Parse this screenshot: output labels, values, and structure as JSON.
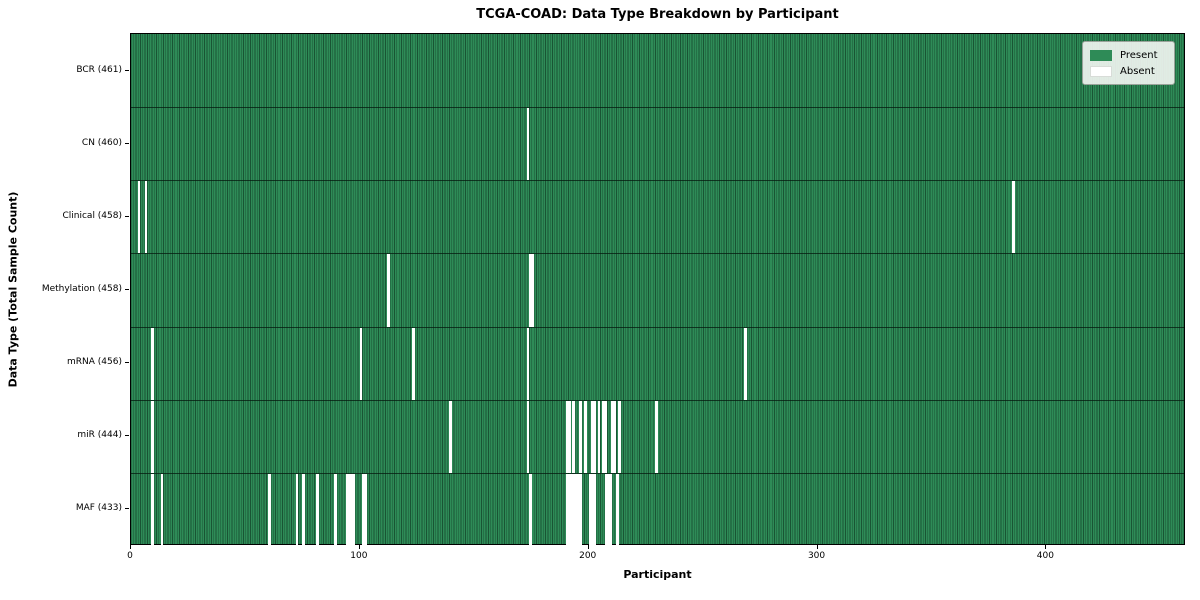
{
  "chart_data": {
    "type": "heatmap",
    "title": "TCGA-COAD: Data Type Breakdown by Participant",
    "xlabel": "Participant",
    "ylabel": "Data Type (Total Sample Count)",
    "x_ticks": [
      0,
      100,
      200,
      300,
      400
    ],
    "xlim": [
      0,
      461
    ],
    "n_participants": 461,
    "grid": "per-cell vertical edges, dark row separators",
    "legend_position": "upper right",
    "legend": [
      {
        "label": "Present",
        "color": "#2e8b57"
      },
      {
        "label": "Absent",
        "color": "#ffffff"
      }
    ],
    "colors": {
      "present": "#2e8b57",
      "absent": "#ffffff",
      "cell_edge": "#0a2818",
      "plot_border": "#000000"
    },
    "rows": [
      {
        "data_type": "BCR",
        "count": 461,
        "label": "BCR (461)",
        "absent_participants": []
      },
      {
        "data_type": "CN",
        "count": 460,
        "label": "CN (460)",
        "absent_participants": [
          173
        ]
      },
      {
        "data_type": "Clinical",
        "count": 458,
        "label": "Clinical (458)",
        "absent_participants": [
          3,
          6,
          385
        ]
      },
      {
        "data_type": "Methylation",
        "count": 458,
        "label": "Methylation (458)",
        "absent_participants": [
          112,
          174,
          175
        ]
      },
      {
        "data_type": "mRNA",
        "count": 456,
        "label": "mRNA (456)",
        "absent_participants": [
          9,
          100,
          123,
          173,
          268
        ]
      },
      {
        "data_type": "miR",
        "count": 444,
        "label": "miR (444)",
        "absent_participants": [
          9,
          139,
          173,
          190,
          191,
          193,
          196,
          198,
          201,
          202,
          204,
          206,
          207,
          210,
          211,
          213,
          229
        ]
      },
      {
        "data_type": "MAF",
        "count": 433,
        "label": "MAF (433)",
        "absent_participants": [
          9,
          13,
          60,
          72,
          75,
          81,
          89,
          94,
          95,
          96,
          97,
          101,
          102,
          174,
          190,
          191,
          192,
          193,
          194,
          195,
          196,
          200,
          201,
          202,
          207,
          208,
          209,
          212
        ]
      }
    ]
  }
}
